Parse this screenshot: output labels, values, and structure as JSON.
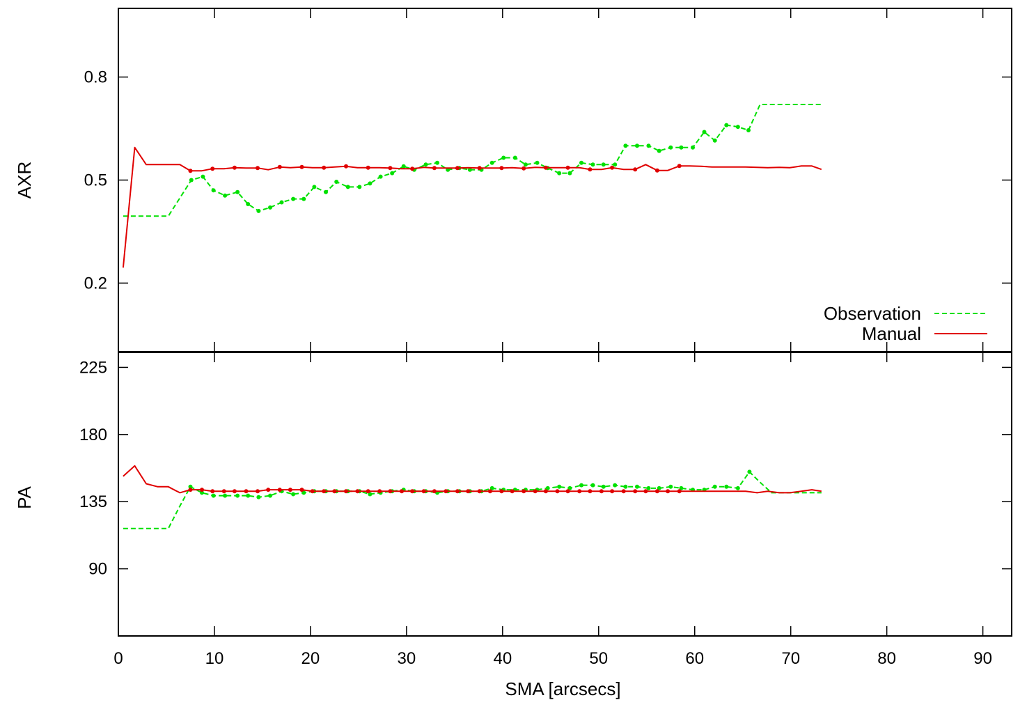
{
  "colors": {
    "observation": "#00e000",
    "manual": "#e00000",
    "axis": "#000000",
    "background": "#ffffff"
  },
  "legend": {
    "placement": "bottom-right of top panel",
    "entries": [
      "Observation",
      "Manual"
    ]
  },
  "chart_data": [
    {
      "type": "line",
      "panel": "top",
      "ylabel": "AXR",
      "xlabel": "",
      "xlim": [
        0,
        93
      ],
      "ylim": [
        0.0,
        1.0
      ],
      "xticks": [
        0,
        10,
        20,
        30,
        40,
        50,
        60,
        70,
        80,
        90
      ],
      "yticks": [
        0.2,
        0.5,
        0.8
      ],
      "grid": false,
      "series": [
        {
          "name": "Observation",
          "style": "dashed",
          "x": [
            0.5,
            5.2,
            7.6,
            8.8,
            9.9,
            11.1,
            12.4,
            13.5,
            14.6,
            15.8,
            17.0,
            18.2,
            19.3,
            20.4,
            21.6,
            22.7,
            23.9,
            25.1,
            26.2,
            27.3,
            28.5,
            29.7,
            30.8,
            32.0,
            33.2,
            34.3,
            35.5,
            36.6,
            37.8,
            38.9,
            40.1,
            41.3,
            42.4,
            43.6,
            44.7,
            45.9,
            47.0,
            48.2,
            49.4,
            50.5,
            51.7,
            52.8,
            54.0,
            55.2,
            56.3,
            57.5,
            58.6,
            59.8,
            61.0,
            62.1,
            63.3,
            64.5,
            65.6,
            66.8,
            73.2
          ],
          "y": [
            0.395,
            0.395,
            0.5,
            0.51,
            0.47,
            0.455,
            0.465,
            0.43,
            0.41,
            0.42,
            0.435,
            0.445,
            0.445,
            0.48,
            0.465,
            0.495,
            0.48,
            0.48,
            0.49,
            0.51,
            0.52,
            0.54,
            0.53,
            0.545,
            0.55,
            0.53,
            0.535,
            0.53,
            0.53,
            0.55,
            0.565,
            0.565,
            0.545,
            0.55,
            0.535,
            0.52,
            0.52,
            0.55,
            0.545,
            0.545,
            0.545,
            0.6,
            0.6,
            0.6,
            0.585,
            0.595,
            0.595,
            0.595,
            0.64,
            0.615,
            0.66,
            0.655,
            0.645,
            0.72,
            0.72
          ]
        },
        {
          "name": "Manual",
          "style": "solid",
          "x": [
            0.5,
            1.7,
            2.9,
            4.1,
            5.2,
            6.4,
            7.5,
            8.7,
            9.8,
            11.0,
            12.1,
            13.3,
            14.5,
            15.6,
            16.8,
            17.9,
            19.1,
            20.2,
            21.4,
            22.5,
            23.7,
            24.9,
            26.0,
            27.2,
            28.3,
            29.5,
            30.6,
            31.8,
            32.9,
            34.1,
            35.3,
            36.4,
            37.6,
            38.7,
            39.9,
            41.0,
            42.2,
            43.4,
            44.5,
            45.7,
            46.8,
            48.0,
            49.1,
            50.3,
            51.4,
            52.6,
            53.8,
            54.9,
            56.1,
            57.2,
            58.4,
            59.5,
            60.7,
            61.8,
            63.0,
            64.2,
            65.3,
            66.5,
            67.6,
            68.8,
            69.9,
            71.1,
            72.2,
            73.2
          ],
          "y": [
            0.245,
            0.595,
            0.545,
            0.545,
            0.545,
            0.545,
            0.527,
            0.527,
            0.533,
            0.533,
            0.536,
            0.535,
            0.535,
            0.53,
            0.538,
            0.536,
            0.538,
            0.536,
            0.536,
            0.538,
            0.54,
            0.536,
            0.536,
            0.536,
            0.535,
            0.533,
            0.533,
            0.537,
            0.535,
            0.535,
            0.535,
            0.536,
            0.535,
            0.535,
            0.535,
            0.536,
            0.534,
            0.537,
            0.536,
            0.536,
            0.536,
            0.536,
            0.531,
            0.531,
            0.536,
            0.531,
            0.531,
            0.545,
            0.528,
            0.528,
            0.541,
            0.541,
            0.54,
            0.538,
            0.538,
            0.538,
            0.538,
            0.537,
            0.536,
            0.537,
            0.536,
            0.541,
            0.541,
            0.531
          ]
        }
      ]
    },
    {
      "type": "line",
      "panel": "bottom",
      "ylabel": "PA",
      "xlabel": "SMA [arcsecs]",
      "xlim": [
        0,
        93
      ],
      "ylim": [
        45,
        235
      ],
      "xticks": [
        0,
        10,
        20,
        30,
        40,
        50,
        60,
        70,
        80,
        90
      ],
      "yticks": [
        90,
        135,
        180,
        225
      ],
      "grid": false,
      "series": [
        {
          "name": "Observation",
          "style": "dashed",
          "x": [
            0.5,
            5.2,
            6.4,
            7.5,
            8.7,
            9.9,
            11.1,
            12.4,
            13.5,
            14.6,
            15.8,
            17.0,
            18.2,
            19.3,
            20.4,
            21.6,
            22.7,
            23.9,
            25.1,
            26.2,
            27.3,
            28.5,
            29.7,
            30.8,
            32.0,
            33.2,
            34.3,
            35.5,
            36.6,
            37.8,
            38.9,
            40.1,
            41.3,
            42.4,
            43.6,
            44.7,
            45.9,
            47.0,
            48.2,
            49.4,
            50.5,
            51.7,
            52.8,
            54.0,
            55.2,
            56.3,
            57.5,
            58.6,
            59.8,
            61.0,
            62.1,
            63.3,
            64.5,
            65.7,
            66.8,
            68.0,
            73.2
          ],
          "y": [
            117,
            117,
            132,
            145,
            141,
            139,
            139,
            139,
            139,
            138,
            139,
            142,
            140,
            141,
            142,
            142,
            142,
            142,
            142,
            140,
            141,
            142,
            143,
            142,
            142,
            141,
            142,
            142,
            142,
            142,
            144,
            143,
            143,
            143,
            143,
            144,
            145,
            144,
            146,
            146,
            145,
            146,
            145,
            145,
            144,
            144,
            145,
            144,
            143,
            143,
            145,
            145,
            144,
            155,
            148,
            141,
            141
          ]
        },
        {
          "name": "Manual",
          "style": "solid",
          "x": [
            0.5,
            1.7,
            2.9,
            4.1,
            5.2,
            6.4,
            7.5,
            8.7,
            9.8,
            11.0,
            12.1,
            13.3,
            14.5,
            15.6,
            16.8,
            17.9,
            19.1,
            20.2,
            21.4,
            22.5,
            23.7,
            24.9,
            26.0,
            27.2,
            28.3,
            29.5,
            30.6,
            31.8,
            32.9,
            34.1,
            35.3,
            36.4,
            37.6,
            38.7,
            39.9,
            41.0,
            42.2,
            43.4,
            44.5,
            45.7,
            46.8,
            48.0,
            49.1,
            50.3,
            51.4,
            52.6,
            53.8,
            54.9,
            56.1,
            57.2,
            58.4,
            59.5,
            60.7,
            61.8,
            63.0,
            64.2,
            65.3,
            66.5,
            67.6,
            68.8,
            69.9,
            71.1,
            72.2,
            73.2
          ],
          "y": [
            152,
            159,
            147,
            145,
            145,
            141,
            143,
            143,
            142,
            142,
            142,
            142,
            142,
            143,
            143,
            143,
            143,
            142,
            142,
            142,
            142,
            142,
            142,
            142,
            142,
            142,
            142,
            142,
            142,
            142,
            142,
            142,
            142,
            142,
            142,
            142,
            142,
            142,
            142,
            142,
            142,
            142,
            142,
            142,
            142,
            142,
            142,
            142,
            142,
            142,
            142,
            142,
            142,
            142,
            142,
            142,
            142,
            141,
            142,
            141,
            141,
            142,
            143,
            142
          ]
        }
      ]
    }
  ]
}
